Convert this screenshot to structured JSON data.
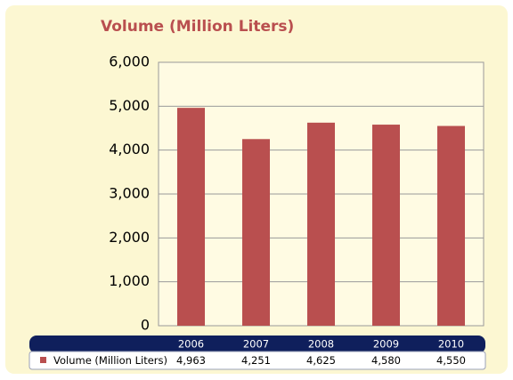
{
  "chart_data": {
    "type": "bar",
    "title": "Volume (Million Liters)",
    "categories": [
      "2006",
      "2007",
      "2008",
      "2009",
      "2010"
    ],
    "series": [
      {
        "name": "Volume (Million Liters)",
        "color": "#b94f4f",
        "values": [
          4963,
          4251,
          4625,
          4580,
          4550
        ],
        "value_labels": [
          "4,963",
          "4,251",
          "4,625",
          "4,580",
          "4,550"
        ]
      }
    ],
    "ylim": [
      0,
      6000
    ],
    "yticks": [
      0,
      {
        "value": 1000,
        "label": "1,000"
      },
      {
        "value": 2000,
        "label": "2,000"
      },
      {
        "value": 3000,
        "label": "3,000"
      },
      {
        "value": 4000,
        "label": "4,000"
      },
      {
        "value": 5000,
        "label": "5,000"
      },
      {
        "value": 6000,
        "label": "6,000"
      }
    ],
    "grid": true
  }
}
